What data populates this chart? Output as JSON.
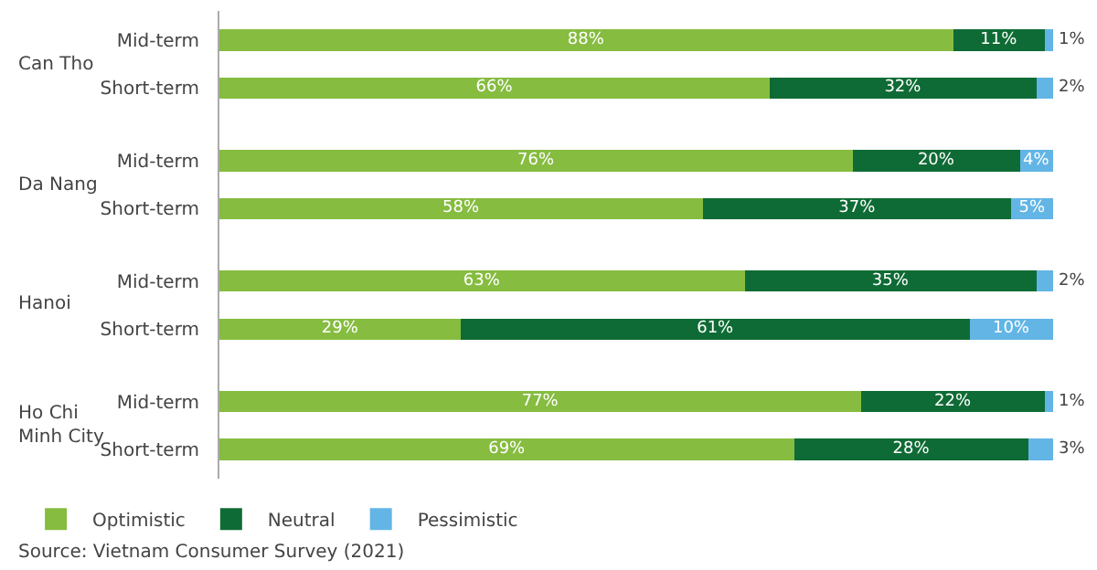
{
  "chart_data": {
    "type": "bar",
    "orientation": "horizontal",
    "stacked": true,
    "legend": "bottom left",
    "categories": [
      "Mid-term",
      "Short-term",
      "Mid-term",
      "Short-term",
      "Mid-term",
      "Short-term",
      "Mid-term",
      "Short-term"
    ],
    "series": [
      {
        "name": "Optimistic",
        "color": "#86bc40",
        "values": [
          88,
          66,
          76,
          58,
          63,
          29,
          77,
          69
        ],
        "value_labels": [
          "88%",
          "66%",
          "76%",
          "58%",
          "63%",
          "29%",
          "77%",
          "69%"
        ]
      },
      {
        "name": "Neutral",
        "color": "#0f6b35",
        "values": [
          11,
          32,
          20,
          37,
          35,
          61,
          22,
          28
        ],
        "value_labels": [
          "11%",
          "32%",
          "20%",
          "37%",
          "35%",
          "61%",
          "22%",
          "28%"
        ]
      },
      {
        "name": "Pessimistic",
        "color": "#62b5e5",
        "values": [
          1,
          2,
          4,
          5,
          2,
          10,
          1,
          3
        ],
        "value_labels": [
          "1%",
          "2%",
          "4%",
          "5%",
          "2%",
          "10%",
          "1%",
          "3%"
        ]
      }
    ],
    "annotations": [
      "Can Tho",
      "Da Nang",
      "Hanoi",
      "Ho Chi Minh City",
      "Source: Vietnam Consumer Survey (2021)"
    ]
  }
}
